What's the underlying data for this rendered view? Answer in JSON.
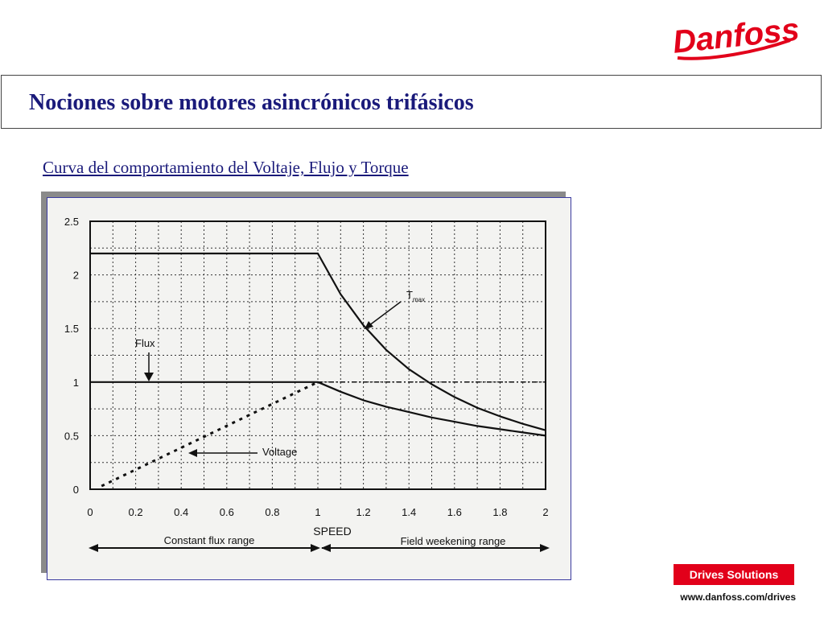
{
  "brand": {
    "logo_text": "Danfoss",
    "color": "#e2001a"
  },
  "header": {
    "title": "Nociones sobre motores asincrónicos trifásicos"
  },
  "subtitle": "Curva del comportamiento del Voltaje, Flujo y Torque",
  "footer": {
    "badge": "Drives Solutions",
    "url": "www.danfoss.com/drives"
  },
  "chart_data": {
    "type": "line",
    "xlabel": "SPEED",
    "ylabel": "",
    "xlim": [
      0,
      2
    ],
    "ylim": [
      0,
      2.5
    ],
    "x_ticks": [
      "0",
      "0.2",
      "0.4",
      "0.6",
      "0.8",
      "1",
      "1.2",
      "1.4",
      "1.6",
      "1.8",
      "2"
    ],
    "y_ticks": [
      "0",
      "0.5",
      "1",
      "1.5",
      "2",
      "2.5"
    ],
    "grid": true,
    "series": [
      {
        "name": "Tmax",
        "style": "solid",
        "x": [
          0,
          1.0,
          1.1,
          1.2,
          1.3,
          1.4,
          1.5,
          1.6,
          1.7,
          1.8,
          1.9,
          2.0
        ],
        "y": [
          2.2,
          2.2,
          1.82,
          1.53,
          1.3,
          1.12,
          0.98,
          0.86,
          0.76,
          0.68,
          0.61,
          0.55
        ]
      },
      {
        "name": "Flux",
        "style": "solid",
        "x": [
          0,
          1.0,
          1.1,
          1.2,
          1.3,
          1.4,
          1.5,
          1.6,
          1.7,
          1.8,
          1.9,
          2.0
        ],
        "y": [
          1.0,
          1.0,
          0.91,
          0.83,
          0.77,
          0.72,
          0.67,
          0.63,
          0.59,
          0.56,
          0.53,
          0.5
        ]
      },
      {
        "name": "Voltage",
        "style": "dotted",
        "x": [
          0.05,
          1.0,
          2.0
        ],
        "y": [
          0.03,
          1.0,
          1.0
        ]
      }
    ],
    "annotations": [
      {
        "text": "Flux"
      },
      {
        "text": "Voltage"
      },
      {
        "text": "T",
        "sub": "max"
      },
      {
        "text": "Constant flux range"
      },
      {
        "text": "Field weekening range"
      }
    ]
  }
}
